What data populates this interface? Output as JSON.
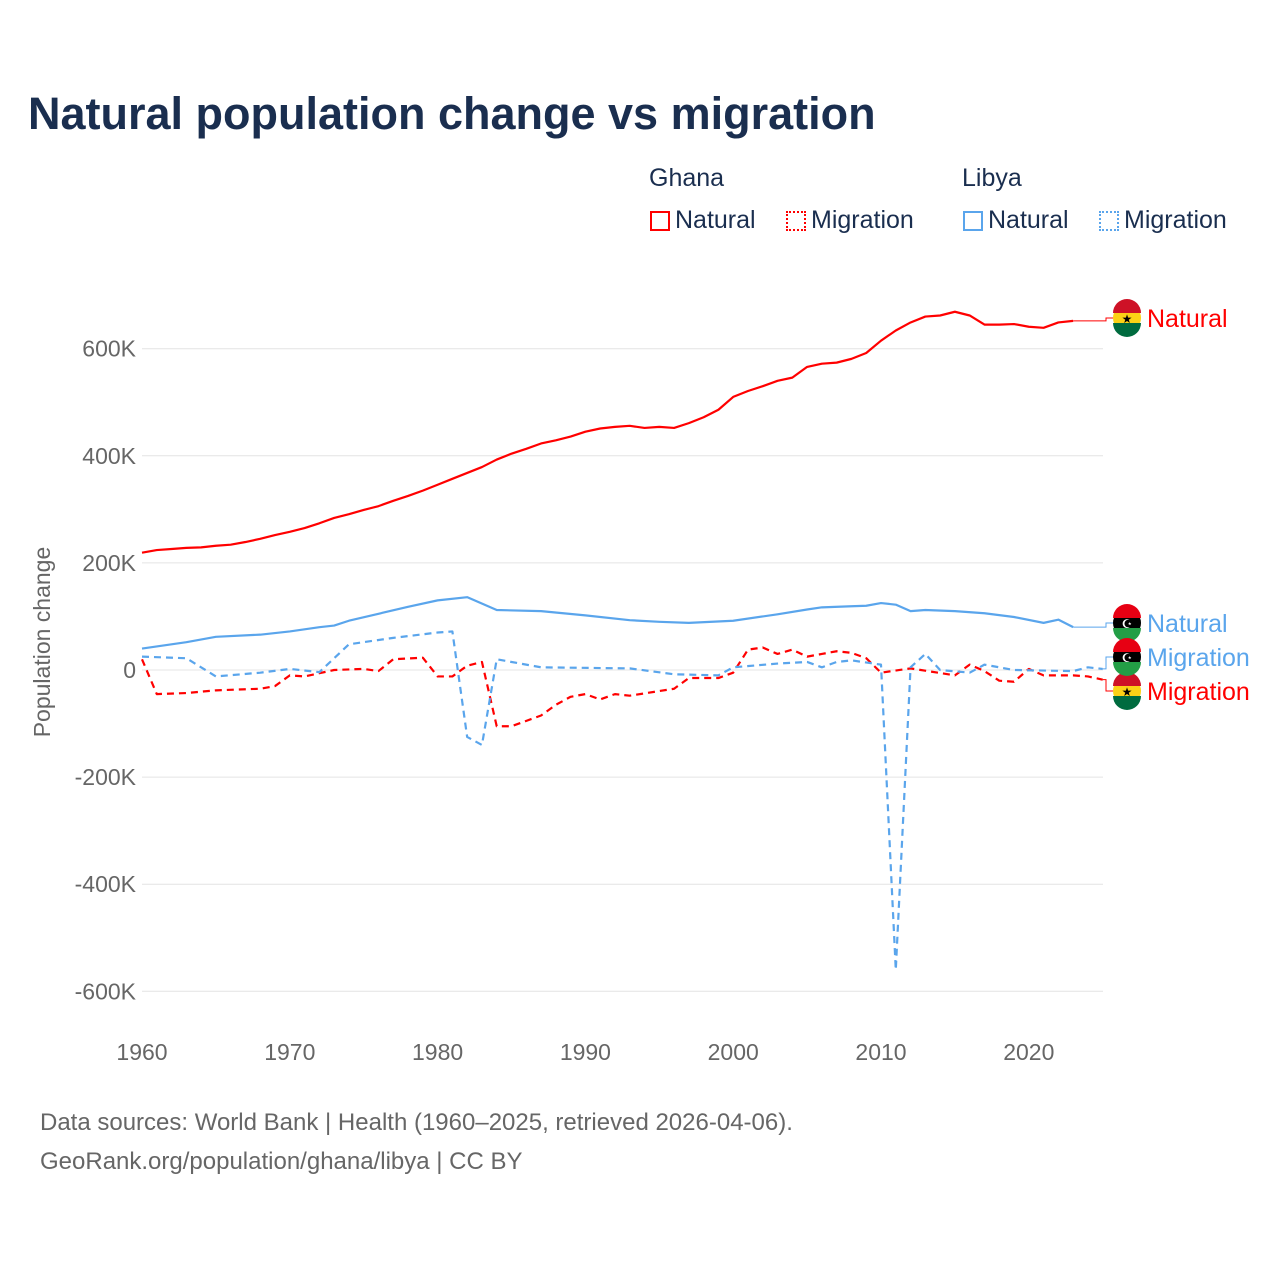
{
  "title": "Natural population change vs migration",
  "legend": {
    "groups": [
      {
        "name": "Ghana",
        "items": [
          "Natural",
          "Migration"
        ]
      },
      {
        "name": "Libya",
        "items": [
          "Natural",
          "Migration"
        ]
      }
    ]
  },
  "footer": [
    "Data sources: World Bank | Health (1960–2025, retrieved 2026-04-06).",
    "GeoRank.org/population/ghana/libya | CC BY"
  ],
  "colors": {
    "ghana": "#ff0000",
    "libya": "#5aa5ec"
  },
  "chart_data": {
    "type": "line",
    "title": "Natural population change vs migration",
    "xlabel": "",
    "ylabel": "Population change",
    "xlim": [
      1960,
      2025
    ],
    "ylim": [
      -650,
      700
    ],
    "grid": true,
    "xticks": [
      1960,
      1970,
      1980,
      1990,
      2000,
      2010,
      2020
    ],
    "xtick_labels": [
      "1960",
      "1970",
      "1980",
      "1990",
      "2000",
      "2010",
      "2020"
    ],
    "yticks": [
      -600,
      -400,
      -200,
      0,
      200,
      400,
      600
    ],
    "ytick_labels": [
      "-600K",
      "-400K",
      "-200K",
      "0",
      "200K",
      "400K",
      "600K"
    ],
    "series": [
      {
        "name": "Natural",
        "country": "Ghana",
        "color": "#ff0000",
        "dash": false,
        "end_label": "Natural",
        "x": [
          1960,
          1961,
          1962,
          1963,
          1964,
          1965,
          1966,
          1967,
          1968,
          1969,
          1970,
          1971,
          1972,
          1973,
          1974,
          1975,
          1976,
          1977,
          1978,
          1979,
          1980,
          1981,
          1982,
          1983,
          1984,
          1985,
          1986,
          1987,
          1988,
          1989,
          1990,
          1991,
          1992,
          1993,
          1994,
          1995,
          1996,
          1997,
          1998,
          1999,
          2000,
          2001,
          2002,
          2003,
          2004,
          2005,
          2006,
          2007,
          2008,
          2009,
          2010,
          2011,
          2012,
          2013,
          2014,
          2015,
          2016,
          2017,
          2018,
          2019,
          2020,
          2021,
          2022,
          2023
        ],
        "y": [
          219,
          224,
          226,
          228,
          229,
          232,
          234,
          239,
          245,
          252,
          258,
          265,
          274,
          284,
          291,
          299,
          306,
          316,
          325,
          335,
          346,
          357,
          368,
          379,
          393,
          404,
          413,
          423,
          429,
          436,
          445,
          451,
          454,
          456,
          452,
          454,
          452,
          461,
          472,
          486,
          510,
          521,
          530,
          540,
          546,
          566,
          572,
          574,
          581,
          592,
          615,
          634,
          649,
          660,
          662,
          669,
          662,
          645,
          645,
          646,
          641,
          639,
          649,
          652
        ]
      },
      {
        "name": "Migration",
        "country": "Ghana",
        "color": "#ff0000",
        "dash": true,
        "end_label": "Migration",
        "x": [
          1960,
          1961,
          1963,
          1965,
          1968,
          1969,
          1970,
          1971,
          1973,
          1975,
          1976,
          1977,
          1979,
          1980,
          1981,
          1982,
          1983,
          1984,
          1985,
          1987,
          1988,
          1989,
          1990,
          1991,
          1992,
          1993,
          1996,
          1997,
          1999,
          2000,
          2001,
          2002,
          2003,
          2004,
          2005,
          2006,
          2007,
          2008,
          2009,
          2010,
          2012,
          2015,
          2016,
          2017,
          2018,
          2019,
          2020,
          2021,
          2023,
          2024,
          2025
        ],
        "y": [
          20,
          -45,
          -43,
          -38,
          -35,
          -30,
          -10,
          -12,
          0,
          2,
          -2,
          20,
          23,
          -12,
          -12,
          8,
          15,
          -105,
          -105,
          -85,
          -65,
          -50,
          -45,
          -55,
          -45,
          -48,
          -35,
          -15,
          -15,
          -5,
          38,
          42,
          30,
          38,
          25,
          30,
          35,
          32,
          22,
          -5,
          3,
          -10,
          10,
          -2,
          -20,
          -22,
          2,
          -10,
          -10,
          -12,
          -18
        ]
      },
      {
        "name": "Natural",
        "country": "Libya",
        "color": "#5aa5ec",
        "dash": false,
        "end_label": "Natural",
        "x": [
          1960,
          1963,
          1965,
          1968,
          1970,
          1972,
          1973,
          1974,
          1976,
          1978,
          1980,
          1982,
          1984,
          1987,
          1990,
          1993,
          1995,
          1997,
          2000,
          2003,
          2005,
          2006,
          2008,
          2009,
          2010,
          2011,
          2012,
          2013,
          2015,
          2017,
          2019,
          2021,
          2022,
          2023
        ],
        "y": [
          40,
          52,
          62,
          66,
          72,
          80,
          83,
          92,
          105,
          118,
          130,
          136,
          112,
          110,
          102,
          93,
          90,
          88,
          92,
          104,
          113,
          117,
          119,
          120,
          125,
          122,
          110,
          112,
          110,
          106,
          99,
          88,
          94,
          80
        ]
      },
      {
        "name": "Migration",
        "country": "Libya",
        "color": "#5aa5ec",
        "dash": true,
        "end_label": "Migration",
        "x": [
          1960,
          1963,
          1965,
          1968,
          1970,
          1972,
          1974,
          1977,
          1980,
          1981,
          1982,
          1983,
          1984,
          1987,
          1993,
          1996,
          1999,
          2000,
          2003,
          2005,
          2006,
          2007,
          2008,
          2010,
          2011,
          2012,
          2013,
          2014,
          2016,
          2017,
          2019,
          2023,
          2024,
          2025
        ],
        "y": [
          25,
          22,
          -12,
          -5,
          2,
          -4,
          48,
          60,
          70,
          72,
          -125,
          -140,
          20,
          5,
          3,
          -8,
          -10,
          5,
          12,
          15,
          5,
          15,
          18,
          10,
          -560,
          5,
          30,
          0,
          -5,
          10,
          0,
          -2,
          5,
          2
        ]
      }
    ]
  }
}
